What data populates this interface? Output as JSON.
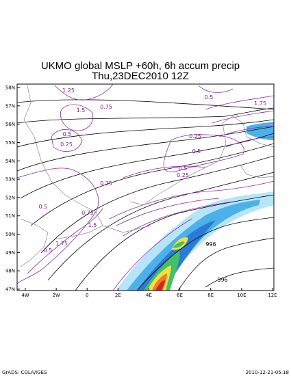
{
  "title": {
    "line1": "UKMO global MSLP +60h, 6h accum precip",
    "line2": "Thu,23DEC2010 12Z"
  },
  "lat_labels": [
    "58N",
    "57N",
    "56N",
    "55N",
    "54N",
    "53N",
    "52N",
    "51N",
    "50N",
    "49N",
    "48N",
    "47N"
  ],
  "lon_labels": [
    "4W",
    "2W",
    "0",
    "2E",
    "4E",
    "6E",
    "8E",
    "10E",
    "12E"
  ],
  "contour_labels": [
    "1.25",
    "1.5",
    "0.75",
    "0.5",
    "1.75",
    "0.25",
    "0.5",
    "0.25",
    "0.5",
    "0.5",
    "0.25",
    "0.25",
    "0.5",
    "0.75",
    "1.5",
    "1.75",
    "0.5",
    "996",
    "996"
  ],
  "footer": {
    "left": "GrADS: COLA/IGES",
    "right": "2010-12-21-05:18"
  }
}
